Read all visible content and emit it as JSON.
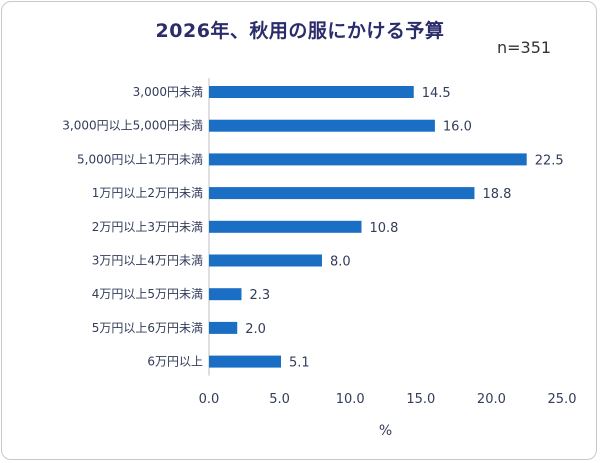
{
  "chart_data": {
    "type": "bar",
    "orientation": "horizontal",
    "title": "2026年、秋用の服にかける予算",
    "annotation": "n=351",
    "categories": [
      "3,000円未満",
      "3,000円以上5,000円未満",
      "5,000円以上1万円未満",
      "1万円以上2万円未満",
      "2万円以上3万円未満",
      "3万円以上4万円未満",
      "4万円以上5万円未満",
      "5万円以上6万円未満",
      "6万円以上"
    ],
    "values": [
      14.5,
      16.0,
      22.5,
      18.8,
      10.8,
      8.0,
      2.3,
      2.0,
      5.1
    ],
    "value_labels": [
      "14.5",
      "16.0",
      "22.5",
      "18.8",
      "10.8",
      "8.0",
      "2.3",
      "2.0",
      "5.1"
    ],
    "xlabel": "%",
    "ylabel": "",
    "xlim": [
      0,
      25
    ],
    "xticks": [
      "0.0",
      "5.0",
      "10.0",
      "15.0",
      "20.0",
      "25.0"
    ],
    "grid": false,
    "legend": "none",
    "bar_color": "#1a6fc4"
  }
}
